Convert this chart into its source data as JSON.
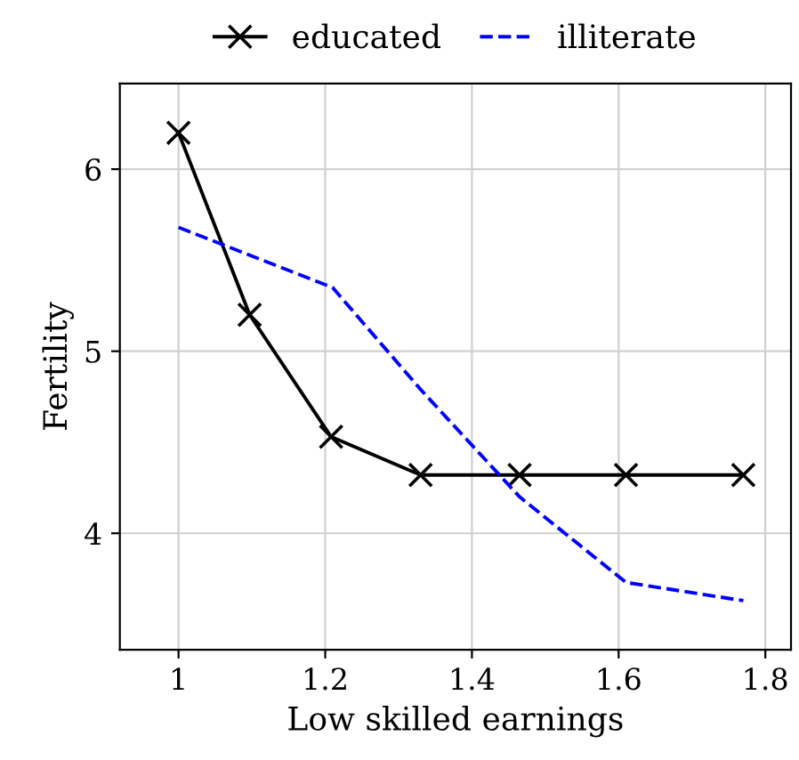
{
  "chart_data": {
    "type": "line",
    "xlabel": "Low skilled earnings",
    "ylabel": "Fertility",
    "xlim": [
      0.92,
      1.835
    ],
    "xticks": [
      1,
      1.2,
      1.4,
      1.6,
      1.8
    ],
    "ylim": [
      3.36,
      6.47
    ],
    "yticks": [
      4,
      5,
      6
    ],
    "grid": true,
    "legend": "top",
    "series": [
      {
        "name": "educated",
        "color": "#000000",
        "marker": "cross",
        "line_style": "solid",
        "x": [
          1.0,
          1.097,
          1.208,
          1.33,
          1.465,
          1.61,
          1.77
        ],
        "values": [
          6.2,
          5.2,
          4.53,
          4.32,
          4.32,
          4.32,
          4.32
        ]
      },
      {
        "name": "illiterate",
        "color": "#0000ff",
        "marker": "none",
        "line_style": "dashed",
        "x": [
          1.0,
          1.21,
          1.33,
          1.465,
          1.61,
          1.77
        ],
        "values": [
          5.68,
          5.35,
          4.79,
          4.2,
          3.73,
          3.63
        ]
      }
    ]
  }
}
